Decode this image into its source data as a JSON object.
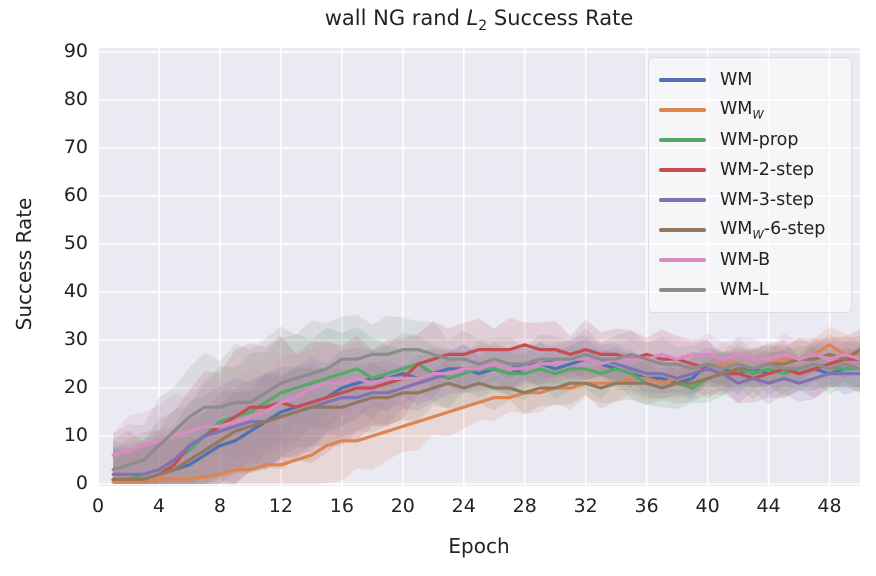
{
  "title_parts": {
    "pre": "wall NG rand ",
    "var": "L",
    "sub": "2",
    "post": " Success Rate"
  },
  "style": {
    "plot_bg": "#EAEAF2",
    "grid_color": "#FFFFFF",
    "text_color": "#232323",
    "band_alpha": 0.17,
    "line_width": 3.2
  },
  "chart_data": {
    "type": "line",
    "title": "wall NG rand L₂ Success Rate",
    "xlabel": "Epoch",
    "ylabel": "Success Rate",
    "xlim": [
      0,
      50
    ],
    "ylim": [
      0,
      91
    ],
    "grid": true,
    "legend_position": "upper right",
    "x_ticks": [
      0,
      4,
      8,
      12,
      16,
      20,
      24,
      28,
      32,
      36,
      40,
      44,
      48
    ],
    "y_ticks": [
      0,
      10,
      20,
      30,
      40,
      50,
      60,
      70,
      80,
      90
    ],
    "x": [
      1,
      2,
      3,
      4,
      5,
      6,
      7,
      8,
      9,
      10,
      11,
      12,
      13,
      14,
      15,
      16,
      17,
      18,
      19,
      20,
      21,
      22,
      23,
      24,
      25,
      26,
      27,
      28,
      29,
      30,
      31,
      32,
      33,
      34,
      35,
      36,
      37,
      38,
      39,
      40,
      41,
      42,
      43,
      44,
      45,
      46,
      47,
      48,
      49,
      50
    ],
    "series": [
      {
        "name": "WM",
        "label_pre": "WM",
        "label_sub": "",
        "label_post": "",
        "color": "#4C72B0",
        "band": 5,
        "values": [
          1,
          1,
          1,
          2,
          3,
          4,
          6,
          8,
          9,
          11,
          13,
          15,
          16,
          17,
          18,
          20,
          21,
          22,
          22,
          23,
          22,
          23,
          24,
          24,
          23,
          24,
          23,
          24,
          25,
          24,
          25,
          26,
          25,
          24,
          23,
          22,
          22,
          21,
          22,
          25,
          24,
          23,
          24,
          23,
          24,
          23,
          24,
          23,
          24,
          24
        ]
      },
      {
        "name": "WM_W",
        "label_pre": "WM",
        "label_sub": "W",
        "label_post": "",
        "color": "#DD8452",
        "band": 5,
        "values": [
          0.5,
          0.5,
          0.5,
          1,
          1,
          1,
          1.5,
          2,
          3,
          3,
          4,
          4,
          5,
          6,
          8,
          9,
          9,
          10,
          11,
          12,
          13,
          14,
          15,
          16,
          17,
          18,
          18,
          19,
          19,
          20,
          20,
          21,
          21,
          21,
          22,
          22,
          21,
          22,
          23,
          24,
          25,
          25,
          24,
          25,
          26,
          26,
          27,
          29,
          27,
          27
        ]
      },
      {
        "name": "WM-prop",
        "label_pre": "WM-prop",
        "label_sub": "",
        "label_post": "",
        "color": "#55A868",
        "band": 6,
        "values": [
          1,
          1,
          2,
          3,
          5,
          7,
          10,
          13,
          14,
          15,
          17,
          19,
          20,
          21,
          22,
          23,
          24,
          22,
          23,
          24,
          25,
          23,
          22,
          23,
          24,
          24,
          23,
          23,
          24,
          23,
          24,
          24,
          23,
          24,
          23,
          21,
          20,
          21,
          20,
          22,
          23,
          24,
          23,
          24,
          23,
          24,
          25,
          24,
          24,
          24
        ]
      },
      {
        "name": "WM-2-step",
        "label_pre": "WM-2-step",
        "label_sub": "",
        "label_post": "",
        "color": "#C44E52",
        "band": 7,
        "values": [
          1,
          1,
          1,
          2,
          4,
          8,
          10,
          12,
          14,
          16,
          16,
          17,
          16,
          17,
          18,
          19,
          20,
          20,
          21,
          22,
          25,
          26,
          27,
          27,
          28,
          28,
          28,
          29,
          28,
          28,
          27,
          28,
          27,
          27,
          26,
          27,
          26,
          26,
          25,
          24,
          23,
          23,
          22,
          23,
          24,
          23,
          24,
          25,
          26,
          26
        ]
      },
      {
        "name": "WM-3-step",
        "label_pre": "WM-3-step",
        "label_sub": "",
        "label_post": "",
        "color": "#8172B3",
        "band": 5,
        "values": [
          2,
          2,
          2,
          3,
          5,
          8,
          10,
          11,
          12,
          13,
          13,
          14,
          15,
          16,
          17,
          18,
          18,
          19,
          19,
          20,
          21,
          22,
          23,
          24,
          24,
          25,
          24,
          25,
          25,
          26,
          26,
          27,
          26,
          25,
          24,
          23,
          23,
          22,
          23,
          24,
          23,
          21,
          22,
          21,
          22,
          21,
          22,
          23,
          23,
          23
        ]
      },
      {
        "name": "WM_W-6-step",
        "label_pre": "WM",
        "label_sub": "W",
        "label_post": "-6-step",
        "color": "#937860",
        "band": 5,
        "values": [
          1,
          1,
          1,
          2,
          3,
          5,
          7,
          9,
          11,
          12,
          13,
          14,
          15,
          16,
          16,
          16,
          17,
          18,
          18,
          19,
          19,
          20,
          21,
          20,
          21,
          20,
          20,
          19,
          20,
          20,
          21,
          21,
          20,
          21,
          21,
          21,
          20,
          21,
          21,
          22,
          23,
          24,
          24,
          25,
          25,
          26,
          26,
          27,
          26,
          28
        ]
      },
      {
        "name": "WM-B",
        "label_pre": "WM-B",
        "label_sub": "",
        "label_post": "",
        "color": "#DA8BC3",
        "band": 5,
        "values": [
          6,
          7,
          8,
          9,
          10,
          11,
          12,
          12,
          13,
          14,
          15,
          17,
          18,
          20,
          21,
          21,
          22,
          21,
          22,
          22,
          22,
          23,
          23,
          24,
          24,
          25,
          24,
          24,
          25,
          25,
          26,
          26,
          25,
          26,
          26,
          26,
          27,
          26,
          27,
          27,
          26,
          27,
          26,
          26,
          27,
          26,
          27,
          26,
          27,
          26
        ]
      },
      {
        "name": "WM-L",
        "label_pre": "WM-L",
        "label_sub": "",
        "label_post": "",
        "color": "#8C8C8C",
        "band": 6,
        "values": [
          3,
          4,
          5,
          8,
          11,
          14,
          16,
          16,
          17,
          17,
          19,
          21,
          22,
          23,
          24,
          26,
          26,
          27,
          27,
          28,
          28,
          27,
          26,
          26,
          25,
          26,
          25,
          25,
          26,
          26,
          26,
          27,
          26,
          26,
          27,
          26,
          25,
          25,
          24,
          25,
          24,
          25,
          24,
          25,
          24,
          24,
          25,
          24,
          25,
          24
        ]
      }
    ]
  }
}
